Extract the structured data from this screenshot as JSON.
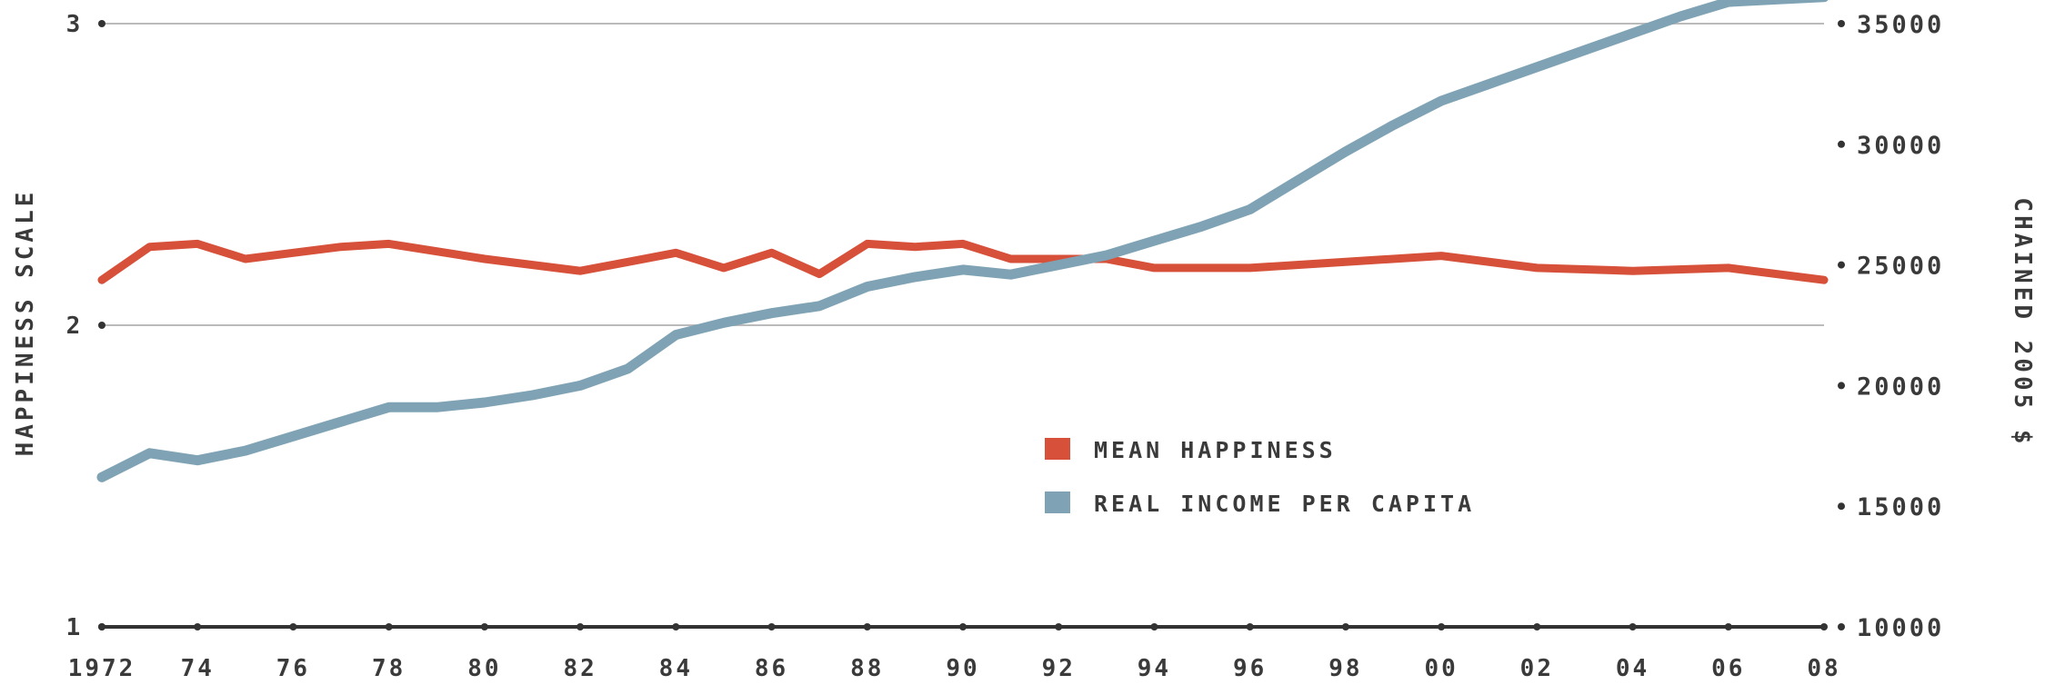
{
  "chart_data": {
    "type": "line",
    "title": "",
    "xlabel": "",
    "y_left_label": "HAPPINESS SCALE",
    "y_right_label": "CHAINED 2005 $",
    "y_left_ticks": [
      "1",
      "2",
      "3"
    ],
    "y_left_lim": [
      1,
      3
    ],
    "y_right_ticks": [
      "10000",
      "15000",
      "20000",
      "25000",
      "30000",
      "35000"
    ],
    "y_right_lim": [
      10000,
      35000
    ],
    "x_range": [
      1972,
      2008
    ],
    "x_tick_labels": [
      "1972",
      "74",
      "76",
      "78",
      "80",
      "82",
      "84",
      "86",
      "88",
      "90",
      "92",
      "94",
      "96",
      "98",
      "00",
      "02",
      "04",
      "06",
      "08"
    ],
    "legend_position": "center-right",
    "grid": true,
    "colors": {
      "happiness": "#d6503a",
      "income": "#7fa3b4",
      "grid": "#bbbbbb",
      "axis": "#333333"
    },
    "series": [
      {
        "name": "MEAN HAPPINESS",
        "axis": "left",
        "x": [
          1972,
          1973,
          1974,
          1975,
          1976,
          1977,
          1978,
          1980,
          1982,
          1983,
          1984,
          1985,
          1986,
          1987,
          1988,
          1989,
          1990,
          1991,
          1993,
          1994,
          1996,
          1998,
          2000,
          2002,
          2004,
          2006,
          2008
        ],
        "values": [
          2.15,
          2.26,
          2.27,
          2.22,
          2.24,
          2.26,
          2.27,
          2.22,
          2.18,
          2.21,
          2.24,
          2.19,
          2.24,
          2.17,
          2.27,
          2.26,
          2.27,
          2.22,
          2.22,
          2.19,
          2.19,
          2.21,
          2.23,
          2.19,
          2.18,
          2.19,
          2.15
        ]
      },
      {
        "name": "REAL INCOME PER CAPITA",
        "axis": "right",
        "x": [
          1972,
          1973,
          1974,
          1975,
          1976,
          1977,
          1978,
          1979,
          1980,
          1981,
          1982,
          1983,
          1984,
          1985,
          1986,
          1987,
          1988,
          1989,
          1990,
          1991,
          1992,
          1993,
          1994,
          1995,
          1996,
          1997,
          1998,
          1999,
          2000,
          2001,
          2002,
          2003,
          2004,
          2005,
          2006,
          2007,
          2008
        ],
        "values": [
          16200,
          17200,
          16900,
          17300,
          17900,
          18500,
          19100,
          19100,
          19300,
          19600,
          20000,
          20700,
          22100,
          22600,
          23000,
          23300,
          24100,
          24500,
          24800,
          24600,
          25000,
          25400,
          26000,
          26600,
          27300,
          28500,
          29700,
          30800,
          31800,
          32500,
          33200,
          33900,
          34600,
          35300,
          35900,
          36000,
          36100
        ]
      }
    ]
  }
}
